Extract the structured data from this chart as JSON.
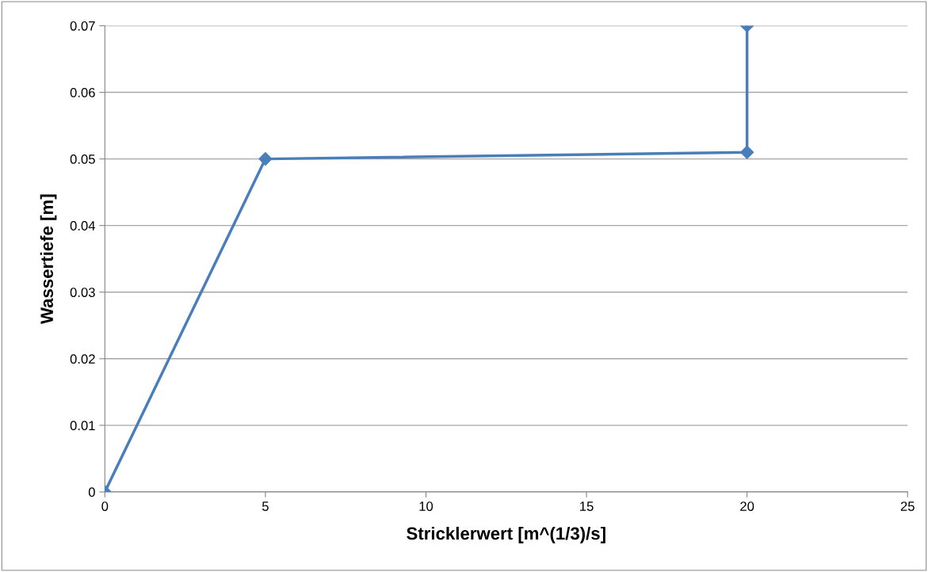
{
  "chart_data": {
    "type": "line",
    "xlabel": "Stricklerwert [m^(1/3)/s]",
    "ylabel": "Wassertiefe [m]",
    "x": [
      0,
      5,
      20,
      20
    ],
    "series": [
      {
        "color": "#4a7ebb",
        "values": [
          0,
          0.05,
          0.051,
          0.07
        ]
      }
    ],
    "xlim": [
      0,
      25
    ],
    "xticks": [
      0,
      5,
      10,
      15,
      20,
      25
    ],
    "ylim": [
      0,
      0.07
    ],
    "yticks": [
      0,
      0.01,
      0.02,
      0.03,
      0.04,
      0.05,
      0.06,
      0.07
    ],
    "grid": "y",
    "marker": "diamond",
    "line_style": "solid"
  }
}
